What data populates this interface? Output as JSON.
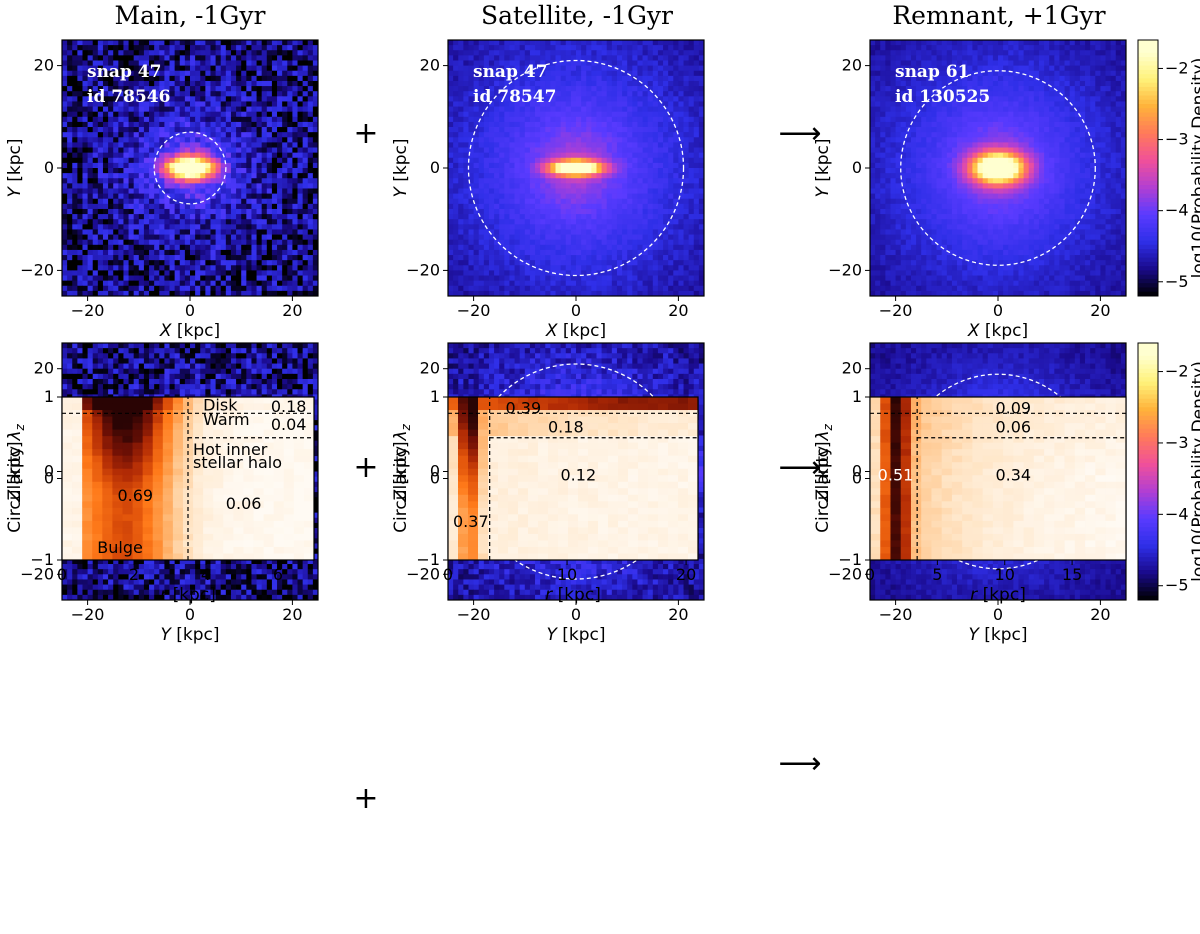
{
  "column_titles": [
    "Main, -1Gyr",
    "Satellite, -1Gyr",
    "Remnant, +1Gyr"
  ],
  "operators": {
    "plus": "+",
    "arrow": "⟶"
  },
  "colors": {
    "colorbar_stops": [
      "#000000",
      "#1a0a8c",
      "#2f2fe8",
      "#5a3bff",
      "#b23fd2",
      "#f0509a",
      "#ff7a5a",
      "#ffb23a",
      "#fff27a",
      "#ffffd0"
    ],
    "circularity_stops": [
      "#fffaf3",
      "#ffe6c8",
      "#ffc58a",
      "#ff9c48",
      "#ff7a1a",
      "#e0520a",
      "#b02a05",
      "#701005",
      "#2a0404"
    ],
    "dashed_line": "#000000",
    "circle": "#ffffff"
  },
  "chart_data": [
    {
      "type": "heatmap",
      "panel": "main-xy",
      "xlabel": "X [kpc]",
      "ylabel": "Y [kpc]",
      "xlim": [
        -25,
        25
      ],
      "ylim": [
        -25,
        25
      ],
      "xticks": [
        "−20",
        "0",
        "20"
      ],
      "yticks": [
        "−20",
        "0",
        "20"
      ],
      "snap": "snap 47",
      "id": "id 78546",
      "circle_radius_kpc": 7,
      "core_sigma_x": 3.5,
      "core_sigma_y": 1.5,
      "halo_scale": 8,
      "noise": 0.55
    },
    {
      "type": "heatmap",
      "panel": "sat-xy",
      "xlabel": "X [kpc]",
      "ylabel": "Y [kpc]",
      "xlim": [
        -25,
        25
      ],
      "ylim": [
        -25,
        25
      ],
      "xticks": [
        "−20",
        "0",
        "20"
      ],
      "yticks": [
        "−20",
        "0",
        "20"
      ],
      "snap": "snap 47",
      "id": "id 78547",
      "circle_radius_kpc": 21,
      "core_sigma_x": 3.5,
      "core_sigma_y": 1.0,
      "halo_scale": 18,
      "noise": 0.15
    },
    {
      "type": "heatmap",
      "panel": "rem-xy",
      "xlabel": "X [kpc]",
      "ylabel": "Y [kpc]",
      "xlim": [
        -25,
        25
      ],
      "ylim": [
        -25,
        25
      ],
      "xticks": [
        "−20",
        "0",
        "20"
      ],
      "yticks": [
        "−20",
        "0",
        "20"
      ],
      "snap": "snap 61",
      "id": "id 130525",
      "circle_radius_kpc": 19,
      "core_sigma_x": 3.5,
      "core_sigma_y": 2.0,
      "halo_scale": 17,
      "noise": 0.12
    },
    {
      "type": "heatmap",
      "panel": "main-yz",
      "xlabel": "Y [kpc]",
      "ylabel": "Z [kpc]",
      "xlim": [
        -25,
        25
      ],
      "ylim": [
        -25,
        25
      ],
      "xticks": [
        "−20",
        "0",
        "20"
      ],
      "yticks": [
        "−20",
        "0",
        "20"
      ],
      "circle_radius_kpc": 7,
      "core_sigma_x": 1.8,
      "core_sigma_y": 1.5,
      "halo_scale": 8,
      "noise": 0.55
    },
    {
      "type": "heatmap",
      "panel": "sat-yz",
      "xlabel": "Y [kpc]",
      "ylabel": "Z [kpc]",
      "xlim": [
        -25,
        25
      ],
      "ylim": [
        -25,
        25
      ],
      "xticks": [
        "−20",
        "0",
        "20"
      ],
      "yticks": [
        "−20",
        "0",
        "20"
      ],
      "circle_radius_kpc": 21,
      "core_sigma_x": 1.0,
      "core_sigma_y": 0.8,
      "halo_scale": 16,
      "disk_extent": 22,
      "disk_height": 3.5,
      "noise": 0.3
    },
    {
      "type": "heatmap",
      "panel": "rem-yz",
      "xlabel": "Y [kpc]",
      "ylabel": "Z [kpc]",
      "xlim": [
        -25,
        25
      ],
      "ylim": [
        -25,
        25
      ],
      "xticks": [
        "−20",
        "0",
        "20"
      ],
      "yticks": [
        "−20",
        "0",
        "20"
      ],
      "circle_radius_kpc": 19,
      "core_sigma_x": 1.2,
      "core_sigma_y": 1.0,
      "halo_scale": 14,
      "noise": 0.12
    },
    {
      "type": "heatmap",
      "panel": "main-circ",
      "xlabel": "r [kpc]",
      "ylabel": "Circularity λz",
      "xlim": [
        0,
        7
      ],
      "ylim": [
        -1,
        1
      ],
      "xticks": [
        "0",
        "2",
        "4",
        "6"
      ],
      "xtick_values": [
        0,
        2,
        4,
        6
      ],
      "yticks": [
        "−1",
        "0",
        "1"
      ],
      "vline": 3.5,
      "hline_cold": 0.8,
      "hline_warm": 0.5,
      "labels": [
        "Disk",
        "0.18",
        "Warm",
        "0.04",
        "Hot inner",
        "stellar halo",
        "0.69",
        "0.06",
        "Bulge"
      ]
    },
    {
      "type": "heatmap",
      "panel": "sat-circ",
      "xlabel": "r [kpc]",
      "ylabel": "Circularity λz",
      "xlim": [
        0,
        21
      ],
      "ylim": [
        -1,
        1
      ],
      "xticks": [
        "0",
        "10",
        "20"
      ],
      "xtick_values": [
        0,
        10,
        20
      ],
      "yticks": [
        "−1",
        "0",
        "1"
      ],
      "vline": 3.5,
      "hline_cold": 0.8,
      "hline_warm": 0.5,
      "labels": [
        "0.39",
        "0.18",
        "0.12",
        "0.37"
      ]
    },
    {
      "type": "heatmap",
      "panel": "rem-circ",
      "xlabel": "r [kpc]",
      "ylabel": "Circularity λz",
      "xlim": [
        0,
        19
      ],
      "ylim": [
        -1,
        1
      ],
      "xticks": [
        "0",
        "5",
        "10",
        "15"
      ],
      "xtick_values": [
        0,
        5,
        10,
        15
      ],
      "yticks": [
        "−1",
        "0",
        "1"
      ],
      "vline": 3.5,
      "hline_cold": 0.8,
      "hline_warm": 0.5,
      "labels": [
        "0.09",
        "0.06",
        "0.51",
        "0.34"
      ]
    }
  ],
  "colorbars": [
    {
      "label": "log10(Probability Density)",
      "ticks": [
        "−2",
        "−3",
        "−4",
        "−5"
      ],
      "tick_values": [
        -2,
        -3,
        -4,
        -5
      ],
      "range": [
        -5.2,
        -1.6
      ]
    },
    {
      "label": "log10(Probability Density)",
      "ticks": [
        "−2",
        "−3",
        "−4",
        "−5"
      ],
      "tick_values": [
        -2,
        -3,
        -4,
        -5
      ],
      "range": [
        -5.2,
        -1.6
      ]
    }
  ]
}
